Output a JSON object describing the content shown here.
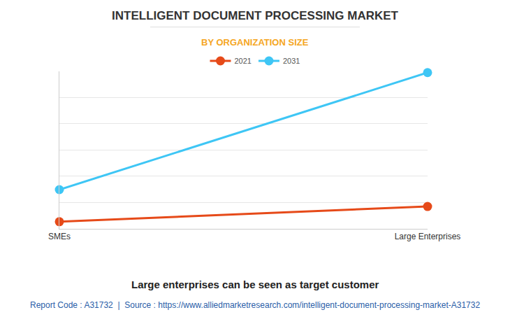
{
  "chart_data": {
    "type": "line",
    "title": "INTELLIGENT DOCUMENT PROCESSING MARKET",
    "subtitle": "BY ORGANIZATION SIZE",
    "caption": "Large enterprises can be seen as target customer",
    "source": "Report Code : A31732  |  Source : https://www.alliedmarketresearch.com/intelligent-document-processing-market-A31732",
    "categories": [
      "SMEs",
      "Large Enterprises"
    ],
    "series": [
      {
        "name": "2021",
        "color": "#e64a19",
        "values": [
          0.27,
          0.85
        ]
      },
      {
        "name": "2031",
        "color": "#3ec6f5",
        "values": [
          1.49,
          5.94
        ]
      }
    ],
    "ylim": [
      0,
      6
    ],
    "yticks": [
      0,
      1,
      2,
      3,
      4,
      5,
      6
    ],
    "grid": true,
    "legend": "top",
    "tick_labels": "x",
    "marker": "circle"
  }
}
